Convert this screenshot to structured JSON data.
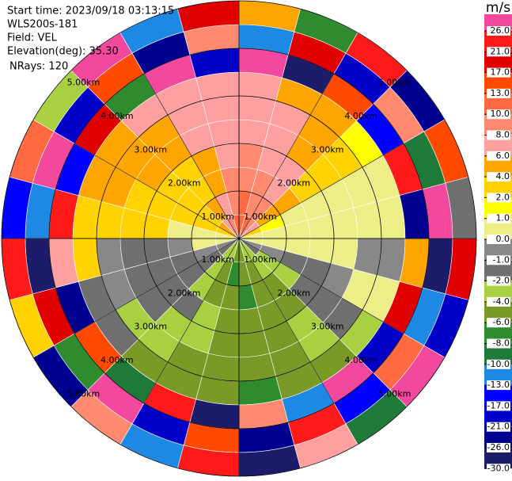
{
  "chart_data": {
    "type": "ppi",
    "header": [
      "Start time: 2023/09/18 03:13:15",
      "WLS200s-181",
      "Field: VEL",
      "Elevation(deg): 35.30",
      "NRays: 120"
    ],
    "rlim": [
      0,
      5
    ],
    "rticks": [
      {
        "value": 1,
        "label": "1.00km"
      },
      {
        "value": 2,
        "label": "2.00km"
      },
      {
        "value": 3,
        "label": "3.00km"
      },
      {
        "value": 4,
        "label": "4.00km"
      },
      {
        "value": 5,
        "label": "5.00km"
      }
    ],
    "colorbar": {
      "unit": "m/s",
      "ticks": [
        {
          "value": 26,
          "label": "26.0"
        },
        {
          "value": 21,
          "label": "21.0"
        },
        {
          "value": 17,
          "label": "17.0"
        },
        {
          "value": 13,
          "label": "13.0"
        },
        {
          "value": 10,
          "label": "10.0"
        },
        {
          "value": 8,
          "label": "8.0"
        },
        {
          "value": 6,
          "label": "6.0"
        },
        {
          "value": 4,
          "label": "4.0"
        },
        {
          "value": 2,
          "label": "2.0"
        },
        {
          "value": 1,
          "label": "1.0"
        },
        {
          "value": 0,
          "label": "0.0"
        },
        {
          "value": -1,
          "label": "-1.0"
        },
        {
          "value": -2,
          "label": "-2.0"
        },
        {
          "value": -4,
          "label": "-4.0"
        },
        {
          "value": -6,
          "label": "-6.0"
        },
        {
          "value": -8,
          "label": "-8.0"
        },
        {
          "value": -10,
          "label": "-10.0"
        },
        {
          "value": -13,
          "label": "-13.0"
        },
        {
          "value": -17,
          "label": "-17.0"
        },
        {
          "value": -21,
          "label": "-21.0"
        },
        {
          "value": -26,
          "label": "-26.0"
        },
        {
          "value": -30,
          "label": "-30.0"
        }
      ],
      "colors": [
        "#f2489e",
        "#ff1a1a",
        "#e00000",
        "#ff4a00",
        "#ff6a40",
        "#ff8a70",
        "#ffa0a0",
        "#ffa500",
        "#ffd200",
        "#ffff00",
        "#eeee88",
        "#888888",
        "#6f6f6f",
        "#a8d040",
        "#7a9a28",
        "#2e8b2e",
        "#1f7a3a",
        "#1e88e5",
        "#0000ff",
        "#0000c8",
        "#000090",
        "#1c1c6a"
      ]
    },
    "values": [
      [
        10,
        10,
        8,
        8,
        6,
        6,
        6,
        26,
        -13,
        4
      ],
      [
        10,
        8,
        8,
        6,
        6,
        6,
        4,
        -30,
        17,
        -8
      ],
      [
        8,
        8,
        6,
        6,
        4,
        4,
        4,
        13,
        -21,
        21
      ],
      [
        6,
        4,
        4,
        2,
        2,
        2,
        1,
        -17,
        8,
        -26
      ],
      [
        2,
        1,
        0,
        0,
        0,
        0,
        0,
        21,
        -10,
        13
      ],
      [
        0,
        0,
        0,
        0,
        0,
        0,
        0,
        -26,
        26,
        -2
      ],
      [
        0,
        0,
        0,
        0,
        0,
        -1,
        -1,
        4,
        -30,
        17
      ],
      [
        -1,
        -1,
        -2,
        -2,
        -1,
        0,
        0,
        17,
        -13,
        -21
      ],
      [
        -2,
        -4,
        -4,
        -2,
        -2,
        -2,
        -4,
        -21,
        10,
        26
      ],
      [
        -4,
        -4,
        -6,
        -6,
        -4,
        -4,
        -6,
        26,
        -17,
        -10
      ],
      [
        -4,
        -6,
        -6,
        -6,
        -6,
        -6,
        -6,
        -13,
        21,
        6
      ],
      [
        -6,
        -6,
        -8,
        -6,
        -6,
        -6,
        -8,
        8,
        -26,
        -30
      ],
      [
        -6,
        -8,
        -6,
        -6,
        -6,
        -6,
        -6,
        -30,
        13,
        21
      ],
      [
        -4,
        -6,
        -6,
        -4,
        -4,
        -6,
        -6,
        21,
        -21,
        -13
      ],
      [
        -4,
        -4,
        -4,
        -2,
        -4,
        -4,
        -6,
        -10,
        26,
        8
      ],
      [
        -2,
        -2,
        -2,
        -2,
        -2,
        -4,
        -2,
        13,
        -8,
        -26
      ],
      [
        -1,
        -1,
        -2,
        -2,
        -2,
        -1,
        -2,
        -26,
        17,
        2
      ],
      [
        0,
        0,
        -1,
        -2,
        -2,
        -1,
        2,
        6,
        -30,
        21
      ],
      [
        0,
        0,
        0,
        2,
        2,
        2,
        2,
        21,
        -13,
        -17
      ],
      [
        2,
        2,
        2,
        2,
        2,
        4,
        4,
        -17,
        26,
        10
      ],
      [
        4,
        2,
        2,
        2,
        4,
        4,
        4,
        17,
        -21,
        -4
      ],
      [
        6,
        4,
        2,
        2,
        4,
        4,
        6,
        -8,
        13,
        26
      ],
      [
        8,
        6,
        4,
        4,
        6,
        6,
        6,
        26,
        -26,
        -13
      ],
      [
        10,
        8,
        8,
        6,
        6,
        6,
        6,
        -21,
        8,
        17
      ]
    ]
  }
}
